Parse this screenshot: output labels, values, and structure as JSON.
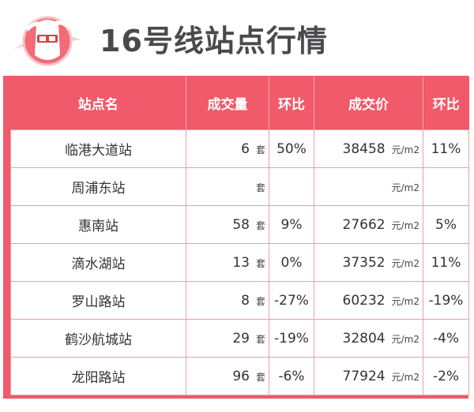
{
  "title": "16号线站点行情",
  "colors": {
    "accent": "#f05a6a",
    "text": "#333333"
  },
  "logo_icon": "cartoon-rabbit-mascot-icon",
  "table": {
    "headers": [
      "站点名",
      "成交量",
      "环比",
      "成交价",
      "环比"
    ],
    "volume_unit": "套",
    "price_unit": "元/m2",
    "rows": [
      {
        "station": "临港大道站",
        "volume": "6",
        "volume_mom": "50%",
        "price": "38458",
        "price_mom": "11%"
      },
      {
        "station": "周浦东站",
        "volume": "",
        "volume_mom": "",
        "price": "",
        "price_mom": ""
      },
      {
        "station": "惠南站",
        "volume": "58",
        "volume_mom": "9%",
        "price": "27662",
        "price_mom": "5%"
      },
      {
        "station": "滴水湖站",
        "volume": "13",
        "volume_mom": "0%",
        "price": "37352",
        "price_mom": "11%"
      },
      {
        "station": "罗山路站",
        "volume": "8",
        "volume_mom": "-27%",
        "price": "60232",
        "price_mom": "-19%"
      },
      {
        "station": "鹤沙航城站",
        "volume": "29",
        "volume_mom": "-19%",
        "price": "32804",
        "price_mom": "-4%"
      },
      {
        "station": "龙阳路站",
        "volume": "96",
        "volume_mom": "-6%",
        "price": "77924",
        "price_mom": "-2%"
      }
    ]
  }
}
